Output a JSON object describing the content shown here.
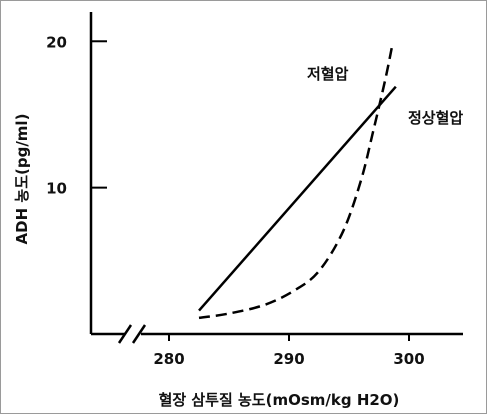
{
  "chart_data": {
    "type": "line",
    "title": "",
    "xlabel": "혈장 삼투질 농도(mOsm/kg H2O)",
    "ylabel": "ADH 농도(pg/ml)",
    "x_ticks": [
      280,
      290,
      300
    ],
    "y_ticks": [
      10,
      20
    ],
    "xlim": [
      273.5,
      304.5
    ],
    "ylim": [
      0,
      22
    ],
    "grid": false,
    "legend": "none",
    "x_axis_break": true,
    "series": [
      {
        "name": "정상혈압",
        "style": "solid",
        "x": [
          282.5,
          298.9
        ],
        "y": [
          1.6,
          16.9
        ]
      },
      {
        "name": "저혈압",
        "style": "dashed",
        "x": [
          282.5,
          285,
          288,
          290.5,
          292.5,
          294.5,
          296,
          297,
          298,
          298.6
        ],
        "y": [
          1.1,
          1.4,
          2.0,
          3.0,
          4.3,
          7.0,
          10.5,
          13.8,
          17.3,
          19.7
        ]
      }
    ],
    "colors": {
      "line": "#000000",
      "text": "#111111"
    }
  }
}
